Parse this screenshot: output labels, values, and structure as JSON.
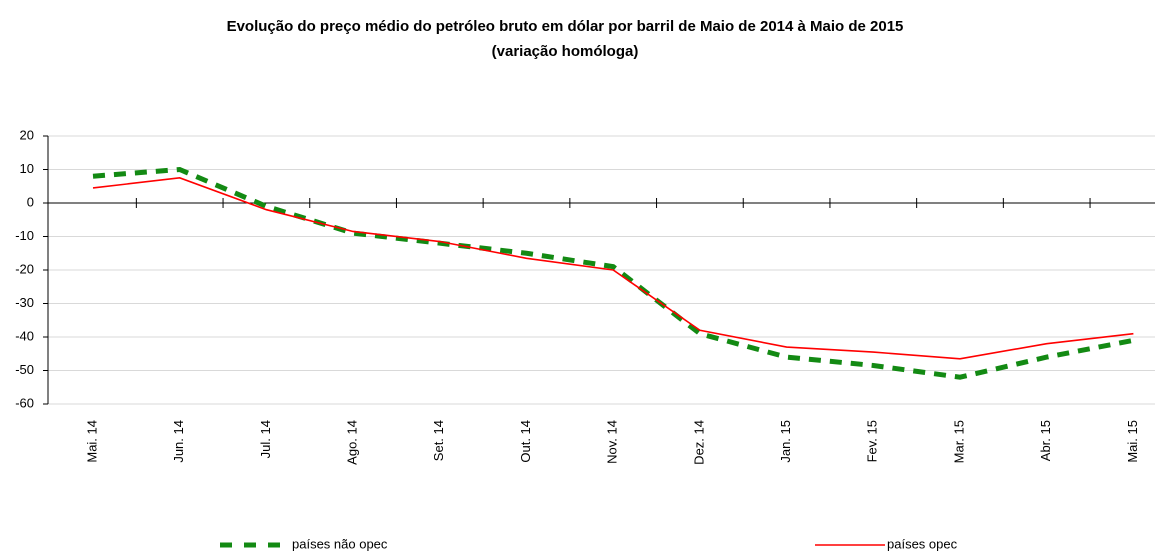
{
  "chart_data": {
    "type": "line",
    "title": "Evolução do preço médio do petróleo bruto em dólar por barril de Maio de 2014 à Maio de 2015",
    "subtitle": "(variação homóloga)",
    "categories": [
      "Mai. 14",
      "Jun. 14",
      "Jul. 14",
      "Ago. 14",
      "Set. 14",
      "Out. 14",
      "Nov. 14",
      "Dez. 14",
      "Jan. 15",
      "Fev. 15",
      "Mar. 15",
      "Abr. 15",
      "Mai. 15"
    ],
    "series": [
      {
        "name": "países não opec",
        "color": "#138a13",
        "dashed": true,
        "values": [
          8,
          10,
          -1,
          -9,
          -12,
          -15,
          -19,
          -39,
          -46,
          -48.5,
          -52,
          -46,
          -41
        ]
      },
      {
        "name": "países opec",
        "color": "#ff0000",
        "dashed": false,
        "values": [
          4.5,
          7.5,
          -2,
          -8.5,
          -11.5,
          -16.5,
          -20,
          -38,
          -43,
          -44.5,
          -46.5,
          -42,
          -39
        ]
      }
    ],
    "ylim": [
      -60,
      20
    ],
    "yticks": [
      -60,
      -50,
      -40,
      -30,
      -20,
      -10,
      0,
      10,
      20
    ],
    "grid": true
  }
}
